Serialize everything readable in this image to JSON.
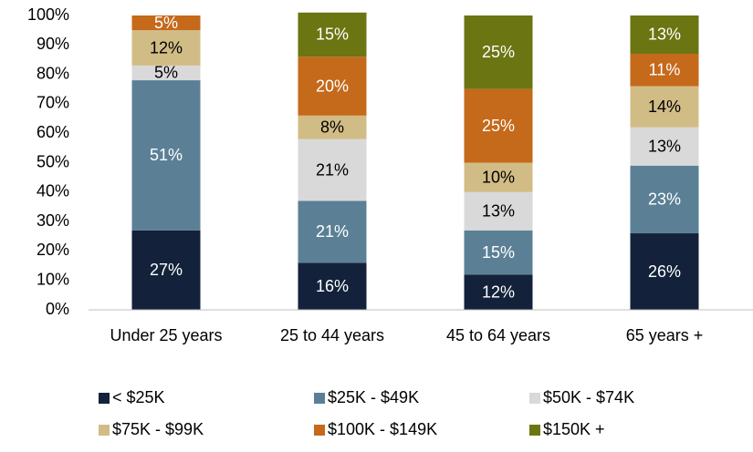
{
  "chart_data": {
    "type": "stacked_bar",
    "categories": [
      "Under 25 years",
      "25 to 44 years",
      "45 to 64 years",
      "65 years +"
    ],
    "series": [
      {
        "name": "< $25K",
        "color": "#13223a",
        "label_color": "#ffffff",
        "values": [
          27,
          16,
          12,
          26
        ],
        "value_labels": [
          "27%",
          "16%",
          "12%",
          "26%"
        ]
      },
      {
        "name": "$25K - $49K",
        "color": "#5b8096",
        "label_color": "#ffffff",
        "values": [
          51,
          21,
          15,
          23
        ],
        "value_labels": [
          "51%",
          "21%",
          "15%",
          "23%"
        ]
      },
      {
        "name": "$50K -  $74K",
        "color": "#d9d9d9",
        "label_color": "#000000",
        "values": [
          5,
          21,
          13,
          13
        ],
        "value_labels": [
          "5%",
          "21%",
          "13%",
          "13%"
        ]
      },
      {
        "name": "$75K - $99K",
        "color": "#d2bc86",
        "label_color": "#000000",
        "values": [
          12,
          8,
          10,
          14
        ],
        "value_labels": [
          "12%",
          "8%",
          "10%",
          "14%"
        ]
      },
      {
        "name": "$100K - $149K",
        "color": "#c5691a",
        "label_color": "#ffffff",
        "values": [
          5,
          20,
          25,
          11
        ],
        "value_labels": [
          "5%",
          "20%",
          "25%",
          "11%"
        ]
      },
      {
        "name": "$150K +",
        "color": "#6b7512",
        "label_color": "#ffffff",
        "values": [
          null,
          15,
          25,
          13
        ],
        "value_labels": [
          null,
          "15%",
          "25%",
          "13%"
        ]
      }
    ],
    "ylim": [
      0,
      100
    ],
    "yticks": [
      {
        "value": 0,
        "label": "0%"
      },
      {
        "value": 10,
        "label": "10%"
      },
      {
        "value": 20,
        "label": "20%"
      },
      {
        "value": 30,
        "label": "30%"
      },
      {
        "value": 40,
        "label": "40%"
      },
      {
        "value": 50,
        "label": "50%"
      },
      {
        "value": 60,
        "label": "60%"
      },
      {
        "value": 70,
        "label": "70%"
      },
      {
        "value": 80,
        "label": "80%"
      },
      {
        "value": 90,
        "label": "90%"
      },
      {
        "value": 100,
        "label": "100%"
      }
    ],
    "legend": "bottom"
  }
}
